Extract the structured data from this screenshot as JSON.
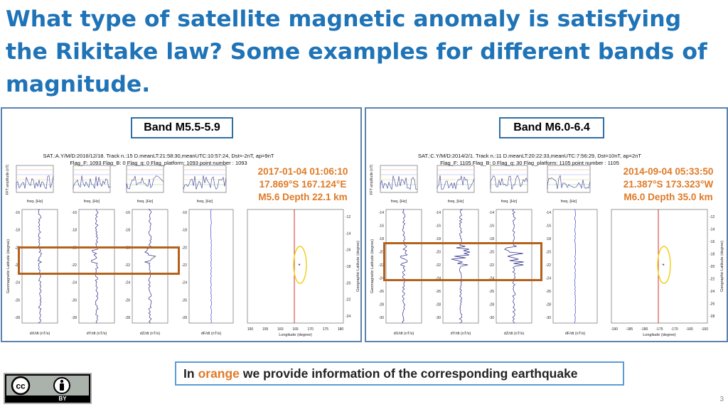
{
  "slide": {
    "title": "What type of satellite magnetic anomaly is satisfying the Rikitake law? Some examples for different bands of magnitude.",
    "note_prefix": "In",
    "note_highlight": "orange",
    "note_suffix": "we provide information of the corresponding earthquake",
    "page_number": "3",
    "license_badge_text": "BY",
    "accent_color": "#1f73b7",
    "orange_color": "#e07a26"
  },
  "panels": [
    {
      "band": "Band M5.5-5.9",
      "sat_line1": "SAT.:A.Y/M/D:2016/12/18. Track n.:15 D.meanLT:21:58:30,meanUTC:10:57:24, Dst=-2nT, ap=9nT",
      "sat_line2": "Flag_F: 1093 Flag_B: 0 Flag_q: 0 Flag_platform: 1093 point number : 1093",
      "eq_line1": "2017-01-04 01:06:10",
      "eq_line2": "17.869°S 167.124°E",
      "eq_line3": "M5.6 Depth 22.1 km",
      "fft_ylabel": "FFT amplitude (nT)",
      "fft_xlabel": "freq. [Hz]",
      "lat_ylabel": "Geomagnetic Latitude (degree)",
      "map_ylabel": "Geographic Latitude (degree)",
      "map_xlabel": "Longitude (degree)",
      "comp_labels": [
        "dX/dt (nT/s)",
        "dY/dt (nT/s)",
        "dZ/dt (nT/s)",
        "dF/dt (nT/s)"
      ],
      "lat_ticks": [
        "-16",
        "-18",
        "-20",
        "-22",
        "-24",
        "-26",
        "-28"
      ],
      "map_lat_ticks": [
        "-12",
        "-14",
        "-16",
        "-18",
        "-20",
        "-22",
        "-24"
      ],
      "map_lon_ticks": [
        "150",
        "155",
        "160",
        "165",
        "170",
        "175",
        "180"
      ]
    },
    {
      "band": "Band M6.0-6.4",
      "sat_line1": "SAT.:C.Y/M/D:2014/2/1. Track n.:11 D.meanLT:20:22:33,meanUTC:7:56:29, Dst=10nT, ap=2nT",
      "sat_line2": "Flag_F: 1105 Flag_B: 0 Flag_q: 30 Flag_platform: 1105 point number : 1105",
      "eq_line1": "2014-09-04 05:33:50",
      "eq_line2": "21.387°S 173.323°W",
      "eq_line3": "M6.0 Depth 35.0 km",
      "fft_ylabel": "FFT amplitude (nT)",
      "fft_xlabel": "freq. [Hz]",
      "lat_ylabel": "Geomagnetic Latitude (degree)",
      "map_ylabel": "Geographic Latitude (degree)",
      "map_xlabel": "Longitude (degree)",
      "comp_labels": [
        "dX/dt (nT/s)",
        "dY/dt (nT/s)",
        "dZ/dt (nT/s)",
        "dF/dt (nT/s)"
      ],
      "lat_ticks": [
        "-14",
        "-16",
        "-18",
        "-20",
        "-22",
        "-24",
        "-26",
        "-28",
        "-30"
      ],
      "map_lat_ticks": [
        "-12",
        "-14",
        "-16",
        "-18",
        "-20",
        "-22",
        "-24",
        "-26",
        "-28"
      ],
      "map_lon_ticks": [
        "-190",
        "-185",
        "-180",
        "-175",
        "-170",
        "-165",
        "-160"
      ]
    }
  ]
}
